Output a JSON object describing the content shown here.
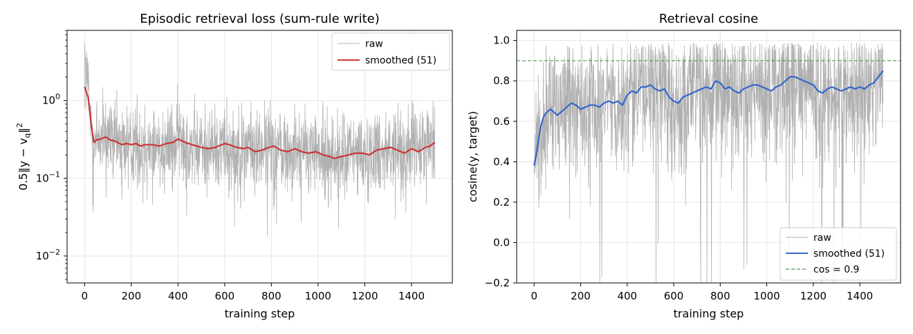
{
  "chart_data": [
    {
      "type": "line",
      "title": "Episodic retrieval loss (sum-rule write)",
      "xlabel": "training step",
      "ylabel": "0.5‖y − v_q‖²",
      "ylabel_parts": {
        "lead": "0.5‖y − v",
        "sub": "q",
        "tail": "‖",
        "sup": "2"
      },
      "yscale": "log",
      "xlim": [
        -75,
        1575
      ],
      "ylim": [
        0.0045,
        8.0
      ],
      "xticks": [
        0,
        200,
        400,
        600,
        800,
        1000,
        1200,
        1400
      ],
      "yticks": [
        {
          "value": 1,
          "base": "10",
          "exp": "0"
        },
        {
          "value": 0.1,
          "base": "10",
          "exp": "−1"
        },
        {
          "value": 0.01,
          "base": "10",
          "exp": "−2"
        }
      ],
      "grid": true,
      "legend_position": "top-right",
      "series": [
        {
          "name": "raw",
          "color": "#b0b0b0",
          "style": "thin"
        },
        {
          "name": "smoothed (51)",
          "color": "#cc3333",
          "style": "solid",
          "x": [
            0,
            15,
            30,
            40,
            50,
            70,
            90,
            110,
            130,
            160,
            180,
            200,
            220,
            240,
            260,
            290,
            320,
            350,
            380,
            400,
            430,
            460,
            500,
            530,
            560,
            600,
            620,
            650,
            680,
            700,
            730,
            760,
            790,
            810,
            840,
            870,
            900,
            930,
            960,
            990,
            1020,
            1050,
            1070,
            1100,
            1130,
            1160,
            1190,
            1220,
            1250,
            1280,
            1310,
            1340,
            1370,
            1400,
            1430,
            1460,
            1480,
            1500
          ],
          "y": [
            1.5,
            1.1,
            0.45,
            0.29,
            0.31,
            0.32,
            0.34,
            0.31,
            0.3,
            0.27,
            0.28,
            0.27,
            0.28,
            0.26,
            0.27,
            0.27,
            0.26,
            0.28,
            0.29,
            0.32,
            0.29,
            0.27,
            0.25,
            0.24,
            0.25,
            0.28,
            0.27,
            0.25,
            0.24,
            0.25,
            0.22,
            0.23,
            0.25,
            0.26,
            0.23,
            0.22,
            0.24,
            0.22,
            0.21,
            0.22,
            0.2,
            0.19,
            0.18,
            0.19,
            0.2,
            0.21,
            0.21,
            0.2,
            0.23,
            0.24,
            0.25,
            0.23,
            0.21,
            0.24,
            0.22,
            0.25,
            0.26,
            0.29
          ]
        }
      ]
    },
    {
      "type": "line",
      "title": "Retrieval cosine",
      "xlabel": "training step",
      "ylabel": "cosine(y, target)",
      "yscale": "linear",
      "xlim": [
        -75,
        1575
      ],
      "ylim": [
        -0.2,
        1.05
      ],
      "xticks": [
        0,
        200,
        400,
        600,
        800,
        1000,
        1200,
        1400
      ],
      "yticks": [
        -0.2,
        0.0,
        0.2,
        0.4,
        0.6,
        0.8,
        1.0
      ],
      "ytick_labels": [
        "−0.2",
        "0.0",
        "0.2",
        "0.4",
        "0.6",
        "0.8",
        "1.0"
      ],
      "grid": true,
      "legend_position": "bottom-right",
      "hline": {
        "name": "cos = 0.9",
        "value": 0.9,
        "color": "#4a9a4a",
        "style": "dashed"
      },
      "series": [
        {
          "name": "raw",
          "color": "#b0b0b0",
          "style": "thin"
        },
        {
          "name": "smoothed (51)",
          "color": "#3366cc",
          "style": "solid",
          "x": [
            0,
            10,
            20,
            30,
            40,
            50,
            60,
            70,
            80,
            90,
            100,
            120,
            140,
            160,
            180,
            200,
            220,
            240,
            260,
            280,
            300,
            320,
            340,
            360,
            380,
            400,
            420,
            440,
            460,
            480,
            500,
            520,
            540,
            560,
            580,
            600,
            620,
            640,
            660,
            680,
            700,
            720,
            740,
            760,
            780,
            800,
            820,
            840,
            860,
            880,
            900,
            920,
            940,
            960,
            980,
            1000,
            1020,
            1040,
            1060,
            1080,
            1100,
            1120,
            1140,
            1160,
            1180,
            1200,
            1220,
            1240,
            1260,
            1280,
            1300,
            1320,
            1340,
            1360,
            1380,
            1400,
            1420,
            1440,
            1460,
            1480,
            1500
          ],
          "y": [
            0.38,
            0.44,
            0.52,
            0.58,
            0.62,
            0.64,
            0.65,
            0.66,
            0.65,
            0.64,
            0.63,
            0.65,
            0.67,
            0.69,
            0.68,
            0.66,
            0.67,
            0.68,
            0.68,
            0.67,
            0.69,
            0.7,
            0.69,
            0.7,
            0.68,
            0.73,
            0.75,
            0.74,
            0.77,
            0.77,
            0.78,
            0.76,
            0.75,
            0.76,
            0.72,
            0.7,
            0.69,
            0.72,
            0.73,
            0.74,
            0.75,
            0.76,
            0.77,
            0.76,
            0.8,
            0.79,
            0.76,
            0.77,
            0.75,
            0.74,
            0.76,
            0.77,
            0.78,
            0.78,
            0.77,
            0.76,
            0.75,
            0.77,
            0.78,
            0.8,
            0.82,
            0.82,
            0.81,
            0.8,
            0.79,
            0.78,
            0.75,
            0.74,
            0.76,
            0.77,
            0.76,
            0.75,
            0.76,
            0.77,
            0.76,
            0.77,
            0.76,
            0.78,
            0.79,
            0.82,
            0.85
          ]
        }
      ]
    }
  ]
}
